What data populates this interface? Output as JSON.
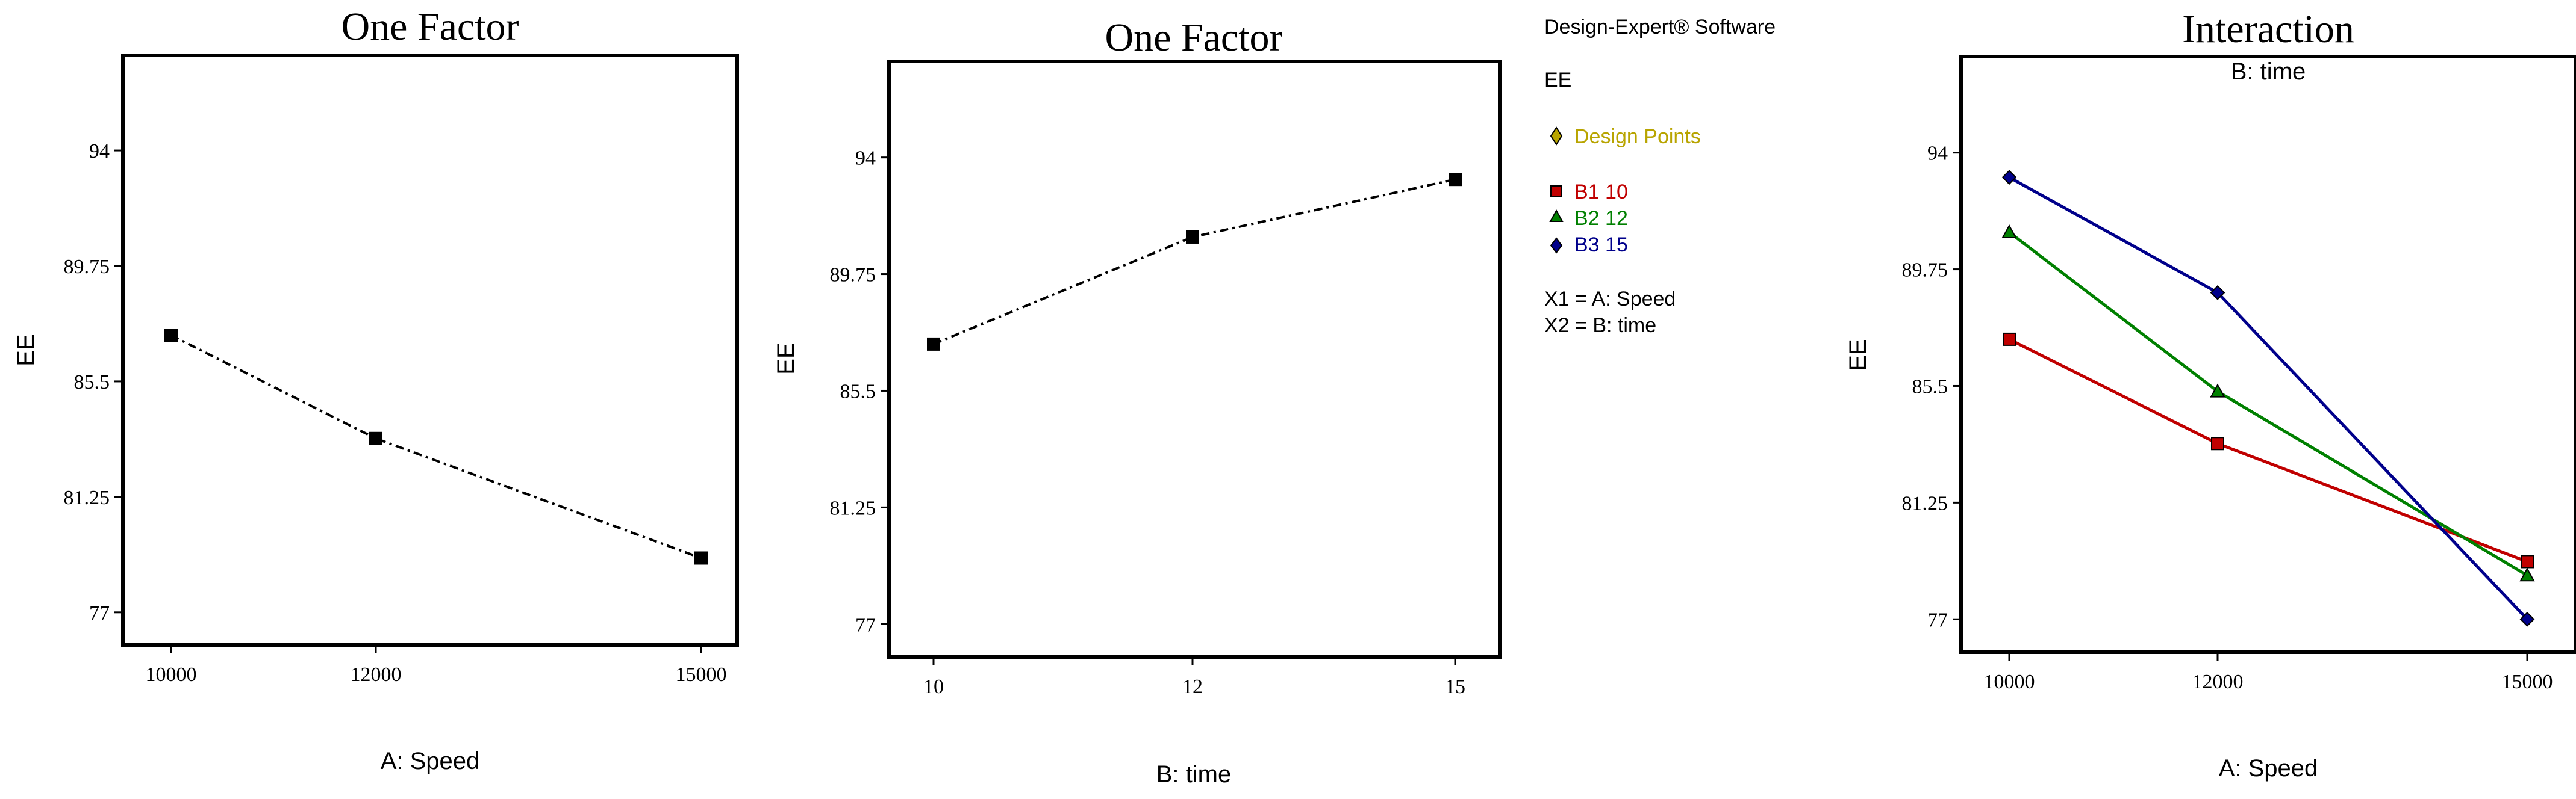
{
  "legend": {
    "software": "Design-Expert® Software",
    "response": "EE",
    "design_points_label": "Design Points",
    "design_points_color": "#b8a400",
    "series": [
      {
        "label": "B1 10",
        "color": "#c00000",
        "marker": "square"
      },
      {
        "label": "B2 12",
        "color": "#008000",
        "marker": "triangle"
      },
      {
        "label": "B3 15",
        "color": "#00008b",
        "marker": "diamond"
      }
    ],
    "factors": [
      "X1 = A: Speed",
      "X2 = B: time"
    ]
  },
  "chart_data": [
    {
      "type": "line",
      "title": "One Factor",
      "xlabel": "A: Speed",
      "ylabel": "EE",
      "x_ticks": [
        "10000",
        "12000",
        "15000"
      ],
      "y_ticks": [
        "94",
        "89.75",
        "85.5",
        "81.25",
        "77"
      ],
      "ylim": [
        75.8,
        97.5
      ],
      "series": [
        {
          "values": [
            87.2,
            83.4,
            79.0
          ],
          "color": "#000000",
          "style": "dash-dot"
        }
      ]
    },
    {
      "type": "line",
      "title": "One Factor",
      "xlabel": "B: time",
      "ylabel": "EE",
      "x_ticks": [
        "10",
        "12",
        "15"
      ],
      "y_ticks": [
        "94",
        "89.75",
        "85.5",
        "81.25",
        "77"
      ],
      "ylim": [
        75.8,
        97.5
      ],
      "series": [
        {
          "values": [
            87.2,
            91.1,
            93.2
          ],
          "color": "#000000",
          "style": "dash-dot"
        }
      ]
    },
    {
      "type": "line",
      "title": "Interaction",
      "subtitle": "B: time",
      "xlabel": "A: Speed",
      "ylabel": "EE",
      "x_ticks": [
        "10000",
        "12000",
        "15000"
      ],
      "y_ticks": [
        "94",
        "89.75",
        "85.5",
        "81.25",
        "77"
      ],
      "ylim": [
        75.8,
        97.5
      ],
      "series": [
        {
          "name": "B1 10",
          "values": [
            87.2,
            83.4,
            79.1
          ],
          "color": "#c00000",
          "marker": "square"
        },
        {
          "name": "B2 12",
          "values": [
            91.1,
            85.3,
            78.6
          ],
          "color": "#008000",
          "marker": "triangle"
        },
        {
          "name": "B3 15",
          "values": [
            93.1,
            88.9,
            77.0
          ],
          "color": "#00008b",
          "marker": "diamond"
        }
      ]
    }
  ]
}
